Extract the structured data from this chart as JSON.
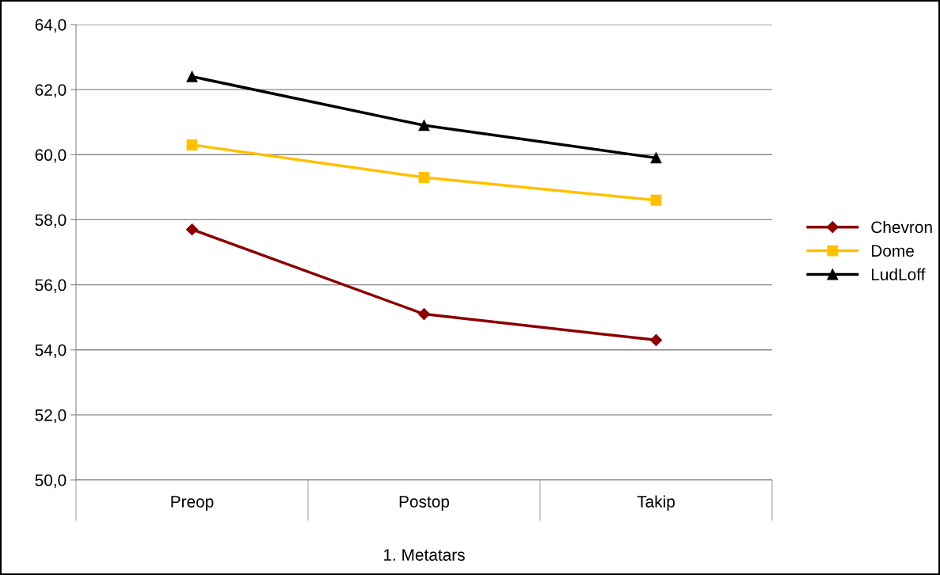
{
  "chart_data": {
    "type": "line",
    "xlabel": "1. Metatars",
    "categories": [
      "Preop",
      "Postop",
      "Takip"
    ],
    "series": [
      {
        "name": "Chevron",
        "color": "#8b0000",
        "marker": "diamond",
        "values": [
          57.7,
          55.1,
          54.3
        ]
      },
      {
        "name": "Dome",
        "color": "#ffc000",
        "marker": "square",
        "values": [
          60.3,
          59.3,
          58.6
        ]
      },
      {
        "name": "LudLoff",
        "color": "#000000",
        "marker": "triangle",
        "values": [
          62.4,
          60.9,
          59.9
        ]
      }
    ],
    "ylim": [
      50,
      64
    ],
    "yticks": [
      {
        "value": 50,
        "label": "50,0"
      },
      {
        "value": 52,
        "label": "52,0"
      },
      {
        "value": 54,
        "label": "54,0"
      },
      {
        "value": 56,
        "label": "56,0"
      },
      {
        "value": 58,
        "label": "58,0"
      },
      {
        "value": 60,
        "label": "60,0"
      },
      {
        "value": 62,
        "label": "62,0"
      },
      {
        "value": 64,
        "label": "64,0"
      }
    ],
    "grid": "y",
    "legend": "right",
    "line_style": "solid"
  }
}
